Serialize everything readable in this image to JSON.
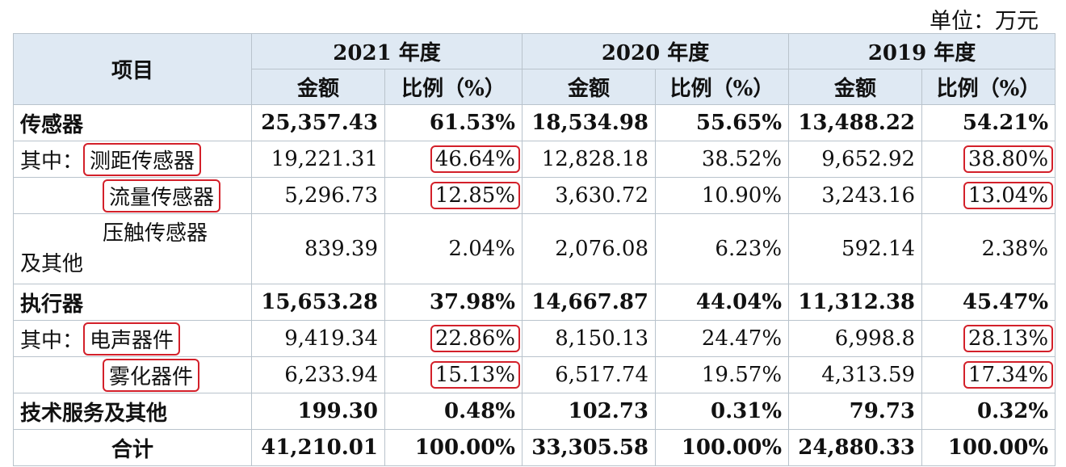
{
  "unit": "单位：万元",
  "headers": {
    "item": "项目",
    "years": [
      "2021 年度",
      "2020 年度",
      "2019 年度"
    ],
    "amount": "金额",
    "ratio": "比例（%）"
  },
  "rows": [
    {
      "label": "传感器",
      "prefix": "",
      "cells": [
        "25,357.43",
        "61.53%",
        "18,534.98",
        "55.65%",
        "13,488.22",
        "54.21%"
      ]
    },
    {
      "label": "测距传感器",
      "prefix": "其中：",
      "cells": [
        "19,221.31",
        "46.64%",
        "12,828.18",
        "38.52%",
        "9,652.92",
        "38.80%"
      ]
    },
    {
      "label": "流量传感器",
      "prefix": "",
      "cells": [
        "5,296.73",
        "12.85%",
        "3,630.72",
        "10.90%",
        "3,243.16",
        "13.04%"
      ]
    },
    {
      "label": "压触传感器",
      "label2": "及其他",
      "cells": [
        "839.39",
        "2.04%",
        "2,076.08",
        "6.23%",
        "592.14",
        "2.38%"
      ]
    },
    {
      "label": "执行器",
      "prefix": "",
      "cells": [
        "15,653.28",
        "37.98%",
        "14,667.87",
        "44.04%",
        "11,312.38",
        "45.47%"
      ]
    },
    {
      "label": "电声器件",
      "prefix": "其中：",
      "cells": [
        "9,419.34",
        "22.86%",
        "8,150.13",
        "24.47%",
        "6,998.8",
        "28.13%"
      ]
    },
    {
      "label": "雾化器件",
      "prefix": "",
      "cells": [
        "6,233.94",
        "15.13%",
        "6,517.74",
        "19.57%",
        "4,313.59",
        "17.34%"
      ]
    },
    {
      "label": "技术服务及其他",
      "prefix": "",
      "cells": [
        "199.30",
        "0.48%",
        "102.73",
        "0.31%",
        "79.73",
        "0.32%"
      ]
    },
    {
      "label": "合计",
      "prefix": "",
      "cells": [
        "41,210.01",
        "100.00%",
        "33,305.58",
        "100.00%",
        "24,880.33",
        "100.00%"
      ]
    }
  ]
}
